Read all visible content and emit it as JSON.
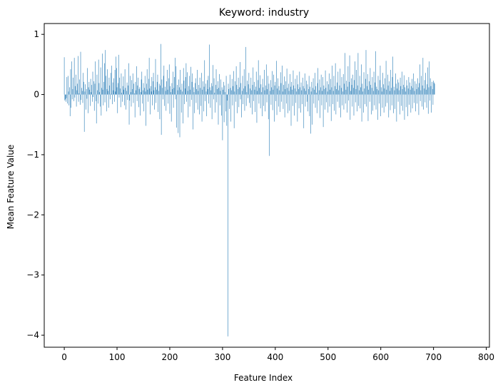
{
  "chart_data": {
    "type": "bar",
    "title": "Keyword: industry",
    "xlabel": "Feature Index",
    "ylabel": "Mean Feature Value",
    "xlim": [
      -38,
      806
    ],
    "ylim": [
      -4.2,
      1.18
    ],
    "xticks": [
      0,
      100,
      200,
      300,
      400,
      500,
      600,
      700,
      800
    ],
    "yticks": [
      1,
      0,
      -1,
      -2,
      -3,
      -4
    ],
    "ytick_labels": [
      "1",
      "0",
      "−1",
      "−2",
      "−3",
      "−4"
    ],
    "grid": false,
    "bar_color": "#1f77b4",
    "series": [
      {
        "x_start": 0,
        "values": [
          0.62,
          -0.1,
          -0.08,
          -0.12,
          -0.06,
          0.29,
          -0.15,
          0.31,
          0.05,
          -0.18,
          0.12,
          -0.36,
          0.42,
          -0.22,
          0.55,
          -0.08,
          0.09,
          0.28,
          -0.11,
          0.61,
          -0.05,
          0.14,
          0.33,
          -0.2,
          0.07,
          0.18,
          0.64,
          -0.12,
          0.02,
          0.25,
          -0.17,
          0.71,
          -0.09,
          0.11,
          0.06,
          -0.14,
          0.36,
          0.21,
          -0.62,
          0.05,
          0.17,
          -0.25,
          0.09,
          -0.07,
          0.44,
          -0.31,
          0.12,
          0.21,
          0.08,
          -0.19,
          0.26,
          0.04,
          0.16,
          -0.12,
          0.38,
          -0.04,
          0.22,
          -0.27,
          0.18,
          0.55,
          -0.11,
          -0.48,
          0.33,
          0.07,
          -0.15,
          0.58,
          0.19,
          0.04,
          -0.2,
          0.45,
          -0.35,
          0.11,
          0.68,
          0.08,
          -0.18,
          0.21,
          0.52,
          -0.13,
          0.74,
          0.31,
          -0.28,
          0.09,
          0.42,
          0.06,
          -0.22,
          0.28,
          0.15,
          -0.08,
          0.36,
          0.01,
          0.48,
          -0.16,
          0.2,
          0.07,
          0.27,
          -0.12,
          0.41,
          0.05,
          0.63,
          0.44,
          0.12,
          -0.31,
          0.19,
          0.66,
          -0.05,
          0.28,
          0.1,
          -0.21,
          0.35,
          0.03,
          -0.12,
          0.14,
          0.3,
          0.08,
          -0.18,
          0.42,
          0.11,
          -0.25,
          0.06,
          0.2,
          -0.09,
          0.15,
          0.52,
          -0.5,
          -0.1,
          0.31,
          0.04,
          -0.2,
          0.24,
          0.09,
          0.35,
          -0.14,
          0.18,
          0.02,
          -0.38,
          0.21,
          0.07,
          0.47,
          -0.11,
          0.15,
          0.28,
          -0.21,
          0.09,
          0.12,
          -0.35,
          0.04,
          0.25,
          0.38,
          -0.15,
          0.07,
          0.19,
          -0.28,
          0.11,
          0.31,
          0.05,
          -0.52,
          0.18,
          0.42,
          0.08,
          -0.12,
          0.26,
          0.61,
          0.1,
          -0.33,
          0.14,
          0.05,
          0.29,
          -0.18,
          0.22,
          0.36,
          0.07,
          -0.25,
          0.12,
          0.59,
          -0.14,
          0.08,
          0.21,
          0.33,
          -0.29,
          0.06,
          0.18,
          -0.41,
          0.15,
          0.84,
          -0.67,
          0.25,
          0.11,
          -0.08,
          0.31,
          0.48,
          -0.19,
          0.13,
          0.06,
          -0.27,
          0.22,
          0.41,
          0.08,
          -0.15,
          0.27,
          0.5,
          -0.32,
          0.14,
          0.04,
          -0.45,
          0.19,
          0.09,
          0.38,
          -0.22,
          0.11,
          0.29,
          0.61,
          -0.08,
          0.47,
          -0.55,
          0.16,
          0.07,
          -0.64,
          0.25,
          0.12,
          -0.71,
          0.41,
          0.08,
          -0.3,
          0.18,
          0.05,
          -0.48,
          0.44,
          0.23,
          -0.16,
          0.1,
          0.29,
          0.52,
          -0.12,
          0.37,
          0.06,
          -0.38,
          0.14,
          0.31,
          -0.2,
          0.08,
          0.46,
          -0.09,
          0.21,
          0.35,
          -0.58,
          0.12,
          0.04,
          -0.31,
          0.19,
          0.27,
          -0.14,
          0.09,
          0.41,
          -0.25,
          0.06,
          0.16,
          -0.33,
          0.28,
          0.11,
          -0.19,
          0.36,
          -0.45,
          0.08,
          0.22,
          -0.28,
          0.13,
          0.57,
          -0.11,
          0.18,
          0.05,
          -0.36,
          0.24,
          0.09,
          0.31,
          -0.15,
          0.83,
          0.12,
          -0.22,
          0.07,
          0.19,
          -0.41,
          0.14,
          0.49,
          -0.08,
          0.27,
          0.03,
          -0.3,
          0.16,
          0.42,
          -0.13,
          0.09,
          0.22,
          -0.5,
          0.11,
          0.34,
          -0.18,
          0.06,
          0.25,
          -0.35,
          0.12,
          -0.76,
          0.08,
          0.21,
          -0.46,
          0.15,
          0.04,
          -0.28,
          0.31,
          -0.52,
          -0.1,
          -4.02,
          0.18,
          0.09,
          -0.24,
          0.33,
          0.11,
          -0.45,
          0.07,
          0.26,
          -0.18,
          0.14,
          0.39,
          -0.56,
          0.05,
          0.22,
          -0.12,
          0.47,
          0.16,
          -0.31,
          0.09,
          0.28,
          -0.21,
          0.12,
          0.54,
          -0.08,
          0.19,
          -0.38,
          0.06,
          0.31,
          -0.16,
          0.1,
          0.42,
          -0.27,
          0.14,
          0.79,
          -0.19,
          0.04,
          0.23,
          -0.06,
          0.17,
          0.36,
          -0.14,
          0.1,
          -0.22,
          0.28,
          0.07,
          -0.33,
          0.16,
          0.45,
          -0.11,
          0.21,
          0.08,
          -0.29,
          0.13,
          0.38,
          -0.47,
          0.06,
          0.24,
          0.57,
          -0.15,
          0.11,
          0.32,
          -0.23,
          0.17,
          0.04,
          -0.36,
          0.26,
          0.12,
          -0.19,
          0.41,
          0.07,
          -0.28,
          0.15,
          0.5,
          -0.13,
          0.09,
          0.31,
          -0.41,
          0.18,
          -1.02,
          0.06,
          0.24,
          -0.17,
          0.12,
          0.39,
          -0.26,
          0.08,
          0.33,
          -0.45,
          0.15,
          0.21,
          -0.11,
          0.56,
          -0.34,
          0.1,
          0.27,
          -0.2,
          0.14,
          0.07,
          -0.29,
          0.37,
          0.19,
          -0.12,
          0.48,
          0.05,
          -0.24,
          0.16,
          0.3,
          -0.38,
          0.09,
          0.22,
          -0.15,
          0.43,
          0.11,
          -0.31,
          0.18,
          0.06,
          -0.27,
          0.34,
          0.13,
          -0.52,
          0.21,
          0.08,
          -0.19,
          0.4,
          0.15,
          -0.35,
          0.1,
          0.26,
          -0.14,
          0.05,
          0.32,
          -0.45,
          0.17,
          0.09,
          -0.23,
          0.38,
          0.12,
          -0.3,
          0.2,
          0.07,
          -0.16,
          0.28,
          0.14,
          -0.56,
          0.1,
          0.35,
          -0.2,
          0.06,
          0.23,
          -0.12,
          0.17,
          -0.28,
          0.09,
          0.31,
          -0.36,
          0.13,
          -0.65,
          0.05,
          0.21,
          -0.5,
          0.11,
          0.27,
          -0.15,
          0.08,
          0.36,
          -0.22,
          0.14,
          0.03,
          -0.31,
          0.19,
          0.44,
          -0.1,
          0.07,
          0.25,
          -0.39,
          0.12,
          0.33,
          -0.18,
          0.06,
          0.29,
          -0.54,
          0.15,
          0.09,
          -0.25,
          0.4,
          0.11,
          -0.13,
          0.22,
          0.05,
          -0.3,
          0.17,
          0.35,
          -0.2,
          0.08,
          0.26,
          -0.44,
          0.12,
          0.48,
          -0.16,
          0.06,
          0.31,
          -0.27,
          0.14,
          0.52,
          -0.33,
          0.09,
          0.2,
          -0.12,
          0.38,
          0.07,
          -0.22,
          0.15,
          0.43,
          -0.38,
          0.11,
          0.29,
          -0.18,
          0.05,
          0.34,
          -0.25,
          0.18,
          0.69,
          -0.15,
          0.08,
          0.23,
          -0.3,
          0.13,
          0.47,
          -0.1,
          0.21,
          0.65,
          -0.42,
          0.06,
          0.27,
          0.16,
          -0.2,
          0.33,
          0.11,
          -0.35,
          0.24,
          0.55,
          -0.13,
          0.09,
          0.41,
          -0.28,
          0.15,
          0.69,
          -0.19,
          0.07,
          0.31,
          -0.23,
          0.12,
          0.5,
          -0.45,
          0.18,
          0.05,
          -0.3,
          0.37,
          0.1,
          -0.16,
          0.26,
          0.74,
          -0.2,
          0.14,
          0.34,
          -0.44,
          0.08,
          0.22,
          -0.12,
          0.44,
          0.16,
          -0.33,
          0.11,
          0.29,
          -0.27,
          0.06,
          0.38,
          -0.18,
          0.2,
          0.72,
          -0.25,
          0.13,
          0.09,
          -0.42,
          0.31,
          0.07,
          -0.15,
          0.24,
          0.48,
          -0.36,
          0.12,
          0.05,
          -0.22,
          0.36,
          0.17,
          -0.3,
          0.1,
          0.27,
          -0.2,
          0.56,
          0.08,
          -0.14,
          0.33,
          0.15,
          -0.38,
          0.22,
          0.06,
          -0.26,
          0.41,
          0.11,
          -0.18,
          0.29,
          0.63,
          -0.31,
          0.13,
          0.07,
          -0.24,
          0.35,
          0.18,
          -0.45,
          0.1,
          0.25,
          -0.12,
          0.2,
          0.07,
          -0.33,
          0.28,
          0.14,
          -0.19,
          0.38,
          0.09,
          -0.27,
          0.16,
          0.32,
          -0.42,
          0.12,
          0.05,
          -0.21,
          0.24,
          0.15,
          -0.36,
          0.1,
          0.29,
          -0.17,
          0.2,
          0.08,
          -0.3,
          0.14,
          0.26,
          -0.23,
          0.11,
          0.35,
          -0.14,
          0.06,
          0.22,
          -0.28,
          0.18,
          0.09,
          -0.15,
          0.27,
          0.12,
          -0.34,
          0.19,
          0.5,
          -0.11,
          0.07,
          0.31,
          -0.2,
          0.15,
          0.61,
          -0.25,
          0.1,
          0.24,
          -0.13,
          0.36,
          0.08,
          -0.22,
          0.17,
          0.45,
          -0.32,
          0.12,
          0.55,
          -0.1,
          0.27,
          0.14,
          -0.3,
          0.21,
          0.09,
          -0.17,
          0.23,
          0.2,
          0.18
        ]
      }
    ]
  }
}
